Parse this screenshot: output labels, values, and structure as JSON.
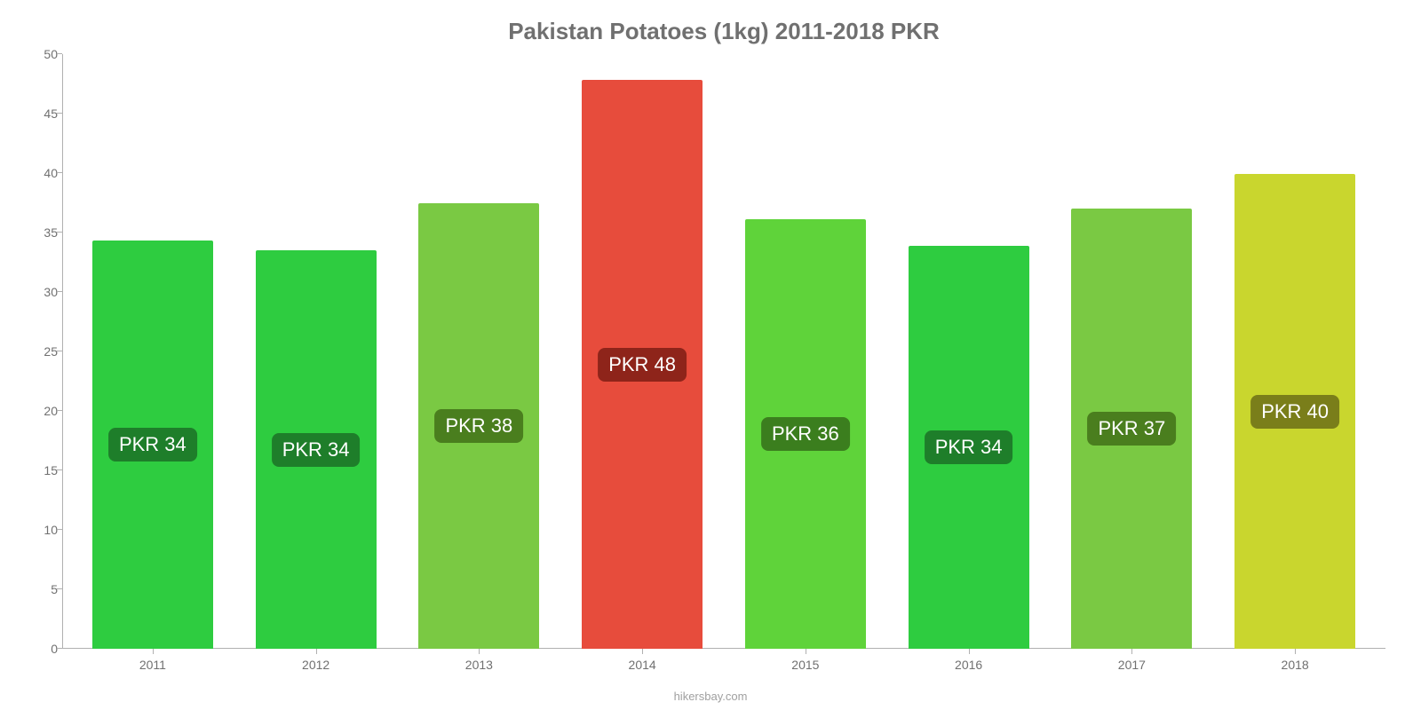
{
  "chart": {
    "type": "bar",
    "title": "Pakistan Potatoes (1kg) 2011-2018 PKR",
    "title_fontsize": 26,
    "title_color": "#707070",
    "background_color": "#ffffff",
    "axis_color": "#b0b0b0",
    "tick_label_color": "#707070",
    "tick_label_fontsize": 14,
    "ylim": [
      0,
      50
    ],
    "ytick_step": 5,
    "yticks": [
      0,
      5,
      10,
      15,
      20,
      25,
      30,
      35,
      40,
      45,
      50
    ],
    "bar_width_ratio": 0.74,
    "bar_label_fontsize": 22,
    "categories": [
      "2011",
      "2012",
      "2013",
      "2014",
      "2015",
      "2016",
      "2017",
      "2018"
    ],
    "values": [
      34.3,
      33.5,
      37.5,
      47.8,
      36.1,
      33.9,
      37.0,
      39.9
    ],
    "value_labels": [
      "PKR 34",
      "PKR 34",
      "PKR 38",
      "PKR 48",
      "PKR 36",
      "PKR 34",
      "PKR 37",
      "PKR 40"
    ],
    "bar_colors": [
      "#2ecc40",
      "#2ecc40",
      "#7ac943",
      "#e74c3c",
      "#5fd33a",
      "#2ecc40",
      "#7ac943",
      "#c9d62e"
    ],
    "label_bg_colors": [
      "#1e7e2a",
      "#1e7e2a",
      "#4a7e1e",
      "#8e241a",
      "#3b7e1e",
      "#1e7e2a",
      "#4a7e1e",
      "#7a7e1a"
    ],
    "source": "hikersbay.com"
  }
}
